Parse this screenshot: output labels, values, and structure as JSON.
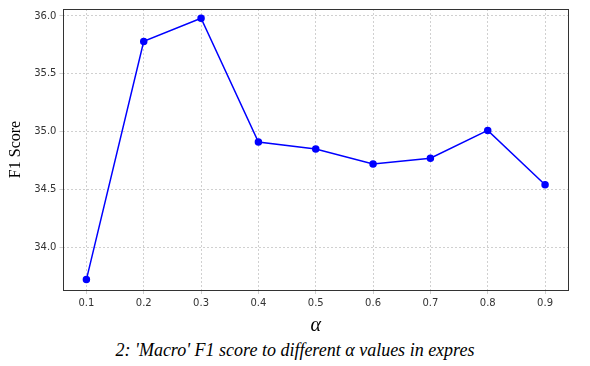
{
  "chart_data": {
    "type": "line",
    "x_label": "α",
    "y_label": "F1 Score",
    "caption": "2: 'Macro' F1 score to different α values in expres",
    "x": [
      0.1,
      0.2,
      0.3,
      0.4,
      0.5,
      0.6,
      0.7,
      0.8,
      0.9
    ],
    "values": [
      33.72,
      35.78,
      35.98,
      34.91,
      34.85,
      34.72,
      34.77,
      35.01,
      34.54
    ],
    "color": "#0000ff",
    "marker": "circle",
    "line_style": "solid",
    "xlim": [
      0.06,
      0.94
    ],
    "xticks": [
      0.1,
      0.2,
      0.3,
      0.4,
      0.5,
      0.6,
      0.7,
      0.8,
      0.9
    ],
    "ylim": [
      33.63,
      36.06
    ],
    "yticks": [
      {
        "value": 34,
        "label": "34.0"
      },
      {
        "value": 34.5,
        "label": "34.5"
      },
      {
        "value": 35,
        "label": "35.0"
      },
      {
        "value": 35.5,
        "label": "35.5"
      },
      {
        "value": 36,
        "label": "36.0"
      }
    ],
    "grid": true
  }
}
